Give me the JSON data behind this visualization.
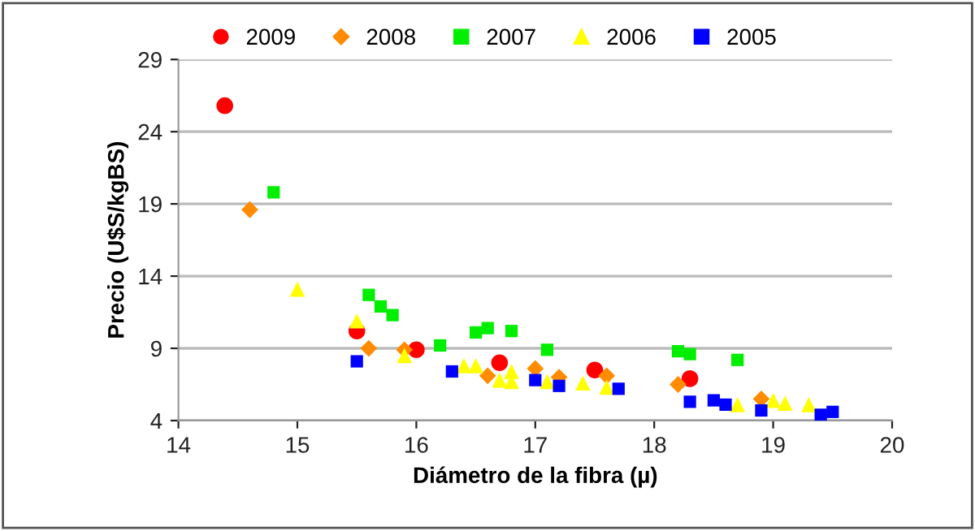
{
  "chart_data": {
    "type": "scatter",
    "xlabel": "Diámetro de la fibra (µ)",
    "ylabel": "Precio (U$S/kgBS)",
    "xlim": [
      14,
      20
    ],
    "xticks": [
      14,
      15,
      16,
      17,
      18,
      19,
      20
    ],
    "ylim": [
      4,
      29
    ],
    "yticks": [
      4,
      9,
      14,
      19,
      24,
      29
    ],
    "grid": "y",
    "legend": "top",
    "series": [
      {
        "name": "2009",
        "color": "#ff0000",
        "marker": "circle",
        "x": [
          14.39,
          15.5,
          16.0,
          16.7,
          17.5,
          18.3
        ],
        "values": [
          25.8,
          10.2,
          8.9,
          8.0,
          7.5,
          6.9
        ]
      },
      {
        "name": "2008",
        "color": "#ff8c00",
        "marker": "diamond",
        "x": [
          14.6,
          15.6,
          15.9,
          16.6,
          17.0,
          17.2,
          17.6,
          18.2,
          18.9
        ],
        "values": [
          18.6,
          9.0,
          8.9,
          7.1,
          7.6,
          7.0,
          7.1,
          6.5,
          5.5
        ]
      },
      {
        "name": "2007",
        "color": "#00ee00",
        "marker": "square",
        "x": [
          14.8,
          15.6,
          15.7,
          15.8,
          16.2,
          16.5,
          16.6,
          16.8,
          17.1,
          18.2,
          18.3,
          18.7
        ],
        "values": [
          19.8,
          12.7,
          11.9,
          11.3,
          9.2,
          10.1,
          10.4,
          10.2,
          8.9,
          8.8,
          8.6,
          8.2
        ]
      },
      {
        "name": "2006",
        "color": "#ffff00",
        "marker": "triangle",
        "x": [
          15.0,
          15.5,
          15.9,
          16.4,
          16.5,
          16.7,
          16.8,
          16.8,
          17.1,
          17.2,
          17.4,
          17.6,
          18.6,
          18.7,
          19.0,
          19.1,
          19.3
        ],
        "values": [
          13.1,
          10.9,
          8.5,
          7.8,
          7.8,
          6.8,
          7.4,
          6.7,
          6.7,
          null,
          6.6,
          6.3,
          null,
          5.1,
          5.4,
          5.2,
          5.1
        ]
      },
      {
        "name": "2005",
        "color": "#0000ff",
        "marker": "square",
        "x": [
          15.5,
          16.3,
          17.0,
          17.2,
          17.7,
          18.3,
          18.5,
          18.6,
          18.9,
          19.4,
          19.5
        ],
        "values": [
          8.1,
          7.4,
          6.8,
          6.4,
          6.2,
          5.3,
          5.4,
          5.1,
          4.7,
          4.4,
          4.6
        ]
      }
    ]
  }
}
